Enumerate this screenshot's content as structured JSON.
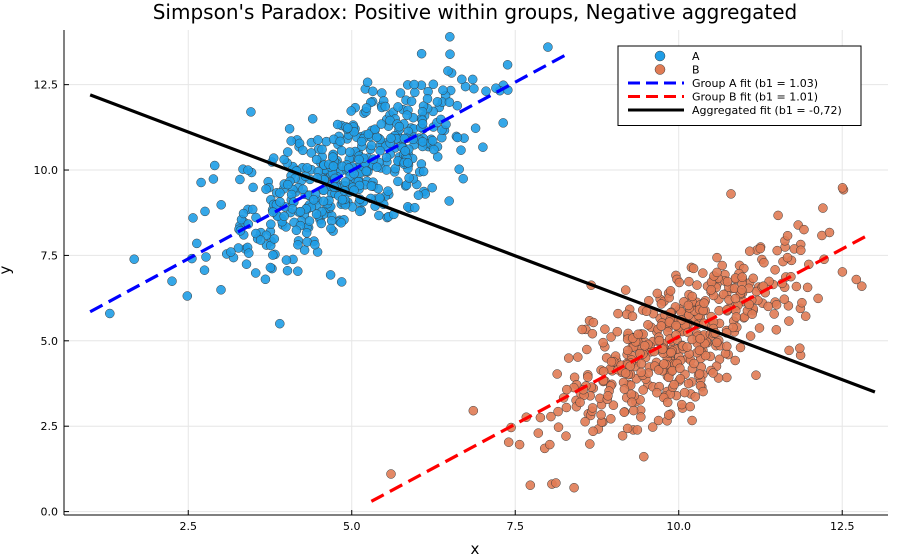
{
  "chart_data": {
    "type": "scatter",
    "title": "Simpson's Paradox: Positive within groups, Negative aggregated",
    "xlabel": "x",
    "ylabel": "y",
    "xlim": [
      0.6,
      13.2
    ],
    "ylim": [
      -0.1,
      14.1
    ],
    "x_ticks": [
      2.5,
      5.0,
      7.5,
      10.0,
      12.5
    ],
    "x_tick_labels": [
      "2.5",
      "5.0",
      "7.5",
      "10.0",
      "12.5"
    ],
    "y_ticks": [
      0.0,
      2.5,
      5.0,
      7.5,
      10.0,
      12.5
    ],
    "y_tick_labels": [
      "0.0",
      "2.5",
      "5.0",
      "7.5",
      "10.0",
      "12.5"
    ],
    "grid": true,
    "legend_position": "top-right",
    "series": [
      {
        "name": "A",
        "kind": "scatter",
        "color": "#1f9de6",
        "x_mean": 5.0,
        "x_sd": 1.0,
        "y_intercept": 4.8,
        "y_slope": 1.03,
        "y_noise_sd": 0.95,
        "count": 500,
        "outliers": [
          {
            "x": 1.3,
            "y": 5.8
          },
          {
            "x": 3.9,
            "y": 5.5
          },
          {
            "x": 6.5,
            "y": 13.9
          },
          {
            "x": 8.0,
            "y": 13.6
          }
        ]
      },
      {
        "name": "B",
        "kind": "scatter",
        "color": "#e07b54",
        "x_mean": 10.0,
        "x_sd": 1.0,
        "y_intercept": -5.1,
        "y_slope": 1.01,
        "y_noise_sd": 0.95,
        "count": 500,
        "outliers": [
          {
            "x": 5.6,
            "y": 1.1
          },
          {
            "x": 8.4,
            "y": 0.7
          },
          {
            "x": 10.8,
            "y": 9.3
          },
          {
            "x": 12.8,
            "y": 6.6
          }
        ]
      },
      {
        "name": "Group A fit (b1 = 1.03)",
        "kind": "line",
        "style": "dashed",
        "color": "#0000ff",
        "points": [
          [
            1.0,
            5.85
          ],
          [
            8.3,
            13.4
          ]
        ]
      },
      {
        "name": "Group B fit (b1 = 1.01)",
        "kind": "line",
        "style": "dashed",
        "color": "#ff0000",
        "points": [
          [
            5.3,
            0.3
          ],
          [
            12.9,
            8.1
          ]
        ]
      },
      {
        "name": "Aggregated fit (b1 = -0,72)",
        "kind": "line",
        "style": "solid",
        "color": "#000000",
        "points": [
          [
            1.0,
            12.2
          ],
          [
            13.0,
            3.5
          ]
        ]
      }
    ]
  }
}
